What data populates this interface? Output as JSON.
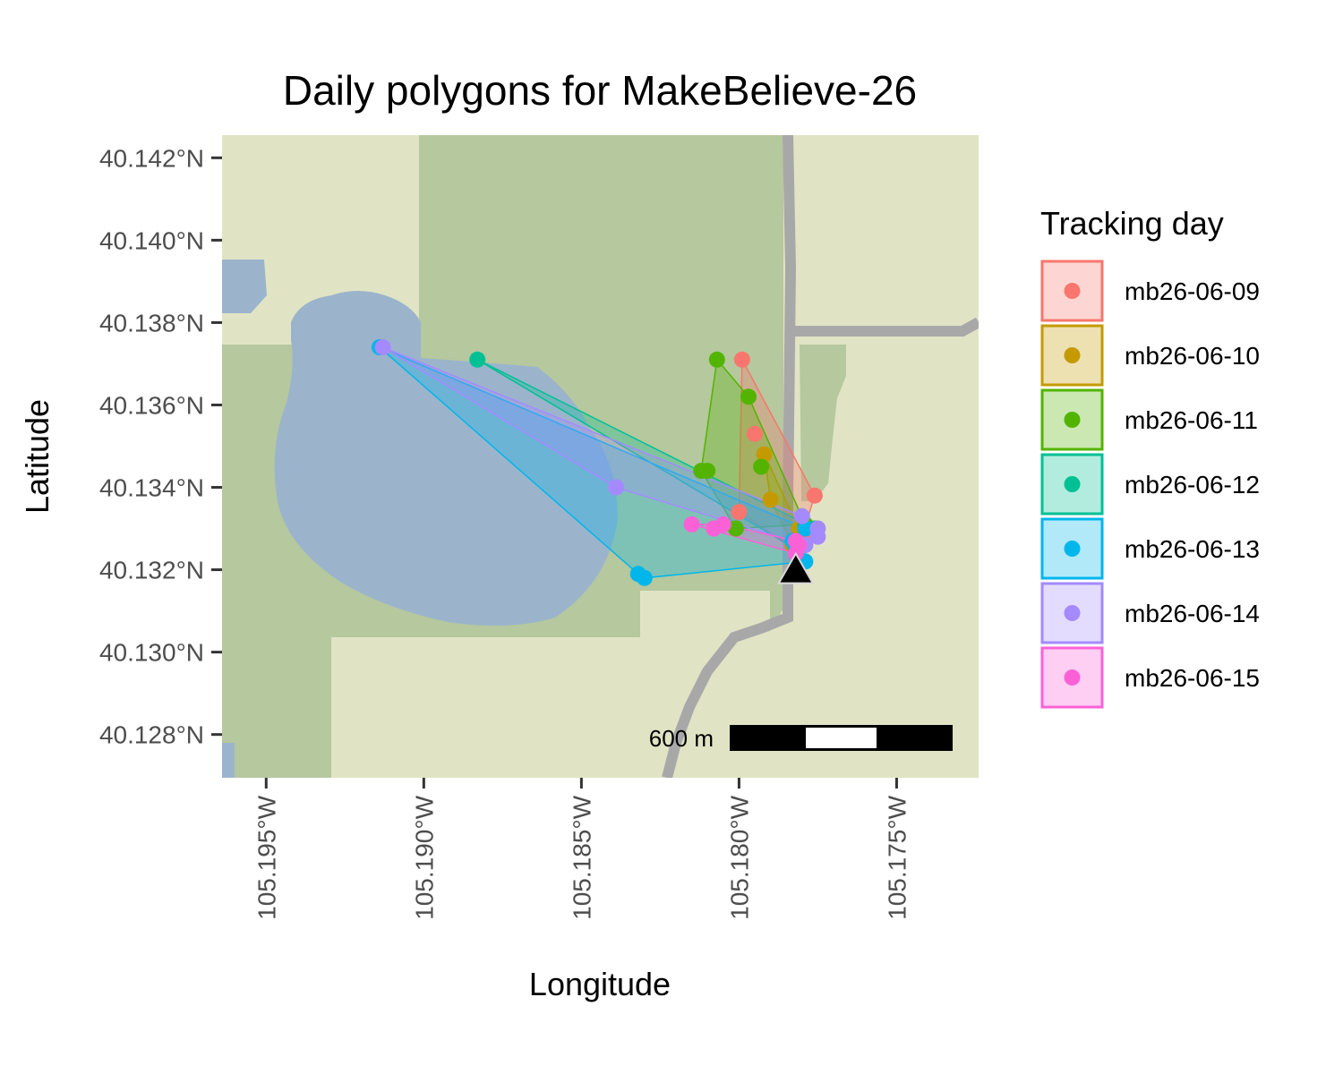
{
  "title": "Daily polygons for MakeBelieve-26",
  "xlabel": "Longitude",
  "ylabel": "Latitude",
  "x_ticks": [
    {
      "value": -105.195,
      "label": "105.195°W"
    },
    {
      "value": -105.19,
      "label": "105.190°W"
    },
    {
      "value": -105.185,
      "label": "105.185°W"
    },
    {
      "value": -105.18,
      "label": "105.180°W"
    },
    {
      "value": -105.175,
      "label": "105.175°W"
    }
  ],
  "y_ticks": [
    {
      "value": 40.142,
      "label": "40.142°N"
    },
    {
      "value": 40.14,
      "label": "40.140°N"
    },
    {
      "value": 40.138,
      "label": "40.138°N"
    },
    {
      "value": 40.136,
      "label": "40.136°N"
    },
    {
      "value": 40.134,
      "label": "40.134°N"
    },
    {
      "value": 40.132,
      "label": "40.132°N"
    },
    {
      "value": 40.13,
      "label": "40.130°N"
    },
    {
      "value": 40.128,
      "label": "40.128°N"
    }
  ],
  "scale_bar": {
    "label": "600 m"
  },
  "colors": {
    "forest": "#b5c89e",
    "open": "#e0e4c4",
    "water": "#9bb4cc",
    "road": "#a8a8a8",
    "marker": "#000000"
  },
  "legend": {
    "title": "Tracking day",
    "position": "right",
    "items": [
      {
        "label": "mb26-06-09",
        "color": "#F8766D"
      },
      {
        "label": "mb26-06-10",
        "color": "#C49A00"
      },
      {
        "label": "mb26-06-11",
        "color": "#53B400"
      },
      {
        "label": "mb26-06-12",
        "color": "#00C094"
      },
      {
        "label": "mb26-06-13",
        "color": "#00B6EB"
      },
      {
        "label": "mb26-06-14",
        "color": "#A58AFF"
      },
      {
        "label": "mb26-06-15",
        "color": "#FB61D7"
      }
    ]
  },
  "chart_data": {
    "type": "scatter",
    "xlim": [
      -105.1964,
      -105.1724
    ],
    "ylim": [
      40.12695,
      40.14255
    ],
    "home_marker": {
      "x": -105.1782,
      "y": 40.132,
      "shape": "triangle"
    },
    "series": [
      {
        "name": "mb26-06-09",
        "color": "#F8766D",
        "points": [
          {
            "x": -105.1799,
            "y": 40.1371
          },
          {
            "x": -105.1795,
            "y": 40.1353
          },
          {
            "x": -105.1776,
            "y": 40.1338
          },
          {
            "x": -105.18,
            "y": 40.1334
          },
          {
            "x": -105.178,
            "y": 40.1328
          },
          {
            "x": -105.1782,
            "y": 40.1325
          }
        ]
      },
      {
        "name": "mb26-06-10",
        "color": "#C49A00",
        "points": [
          {
            "x": -105.1792,
            "y": 40.1348
          },
          {
            "x": -105.179,
            "y": 40.1337
          },
          {
            "x": -105.1781,
            "y": 40.133
          },
          {
            "x": -105.1783,
            "y": 40.1326
          }
        ]
      },
      {
        "name": "mb26-06-11",
        "color": "#53B400",
        "points": [
          {
            "x": -105.1807,
            "y": 40.1371
          },
          {
            "x": -105.1797,
            "y": 40.1362
          },
          {
            "x": -105.1812,
            "y": 40.1344
          },
          {
            "x": -105.181,
            "y": 40.1344
          },
          {
            "x": -105.1793,
            "y": 40.1345
          },
          {
            "x": -105.1801,
            "y": 40.133
          },
          {
            "x": -105.1779,
            "y": 40.1331
          }
        ]
      },
      {
        "name": "mb26-06-12",
        "color": "#00C094",
        "points": [
          {
            "x": -105.1883,
            "y": 40.1371
          },
          {
            "x": -105.1776,
            "y": 40.133
          },
          {
            "x": -105.1782,
            "y": 40.1325
          }
        ]
      },
      {
        "name": "mb26-06-13",
        "color": "#00B6EB",
        "points": [
          {
            "x": -105.1914,
            "y": 40.1374
          },
          {
            "x": -105.1832,
            "y": 40.1319
          },
          {
            "x": -105.183,
            "y": 40.1318
          },
          {
            "x": -105.1779,
            "y": 40.1322
          },
          {
            "x": -105.1783,
            "y": 40.1327
          },
          {
            "x": -105.1779,
            "y": 40.133
          }
        ]
      },
      {
        "name": "mb26-06-14",
        "color": "#A58AFF",
        "points": [
          {
            "x": -105.1913,
            "y": 40.1374
          },
          {
            "x": -105.1839,
            "y": 40.134
          },
          {
            "x": -105.178,
            "y": 40.1333
          },
          {
            "x": -105.1775,
            "y": 40.133
          },
          {
            "x": -105.1775,
            "y": 40.1328
          },
          {
            "x": -105.1779,
            "y": 40.1326
          }
        ]
      },
      {
        "name": "mb26-06-15",
        "color": "#FB61D7",
        "points": [
          {
            "x": -105.1815,
            "y": 40.1331
          },
          {
            "x": -105.1808,
            "y": 40.133
          },
          {
            "x": -105.1805,
            "y": 40.1331
          },
          {
            "x": -105.1782,
            "y": 40.1327
          },
          {
            "x": -105.1781,
            "y": 40.1326
          },
          {
            "x": -105.1782,
            "y": 40.1324
          }
        ]
      }
    ]
  }
}
